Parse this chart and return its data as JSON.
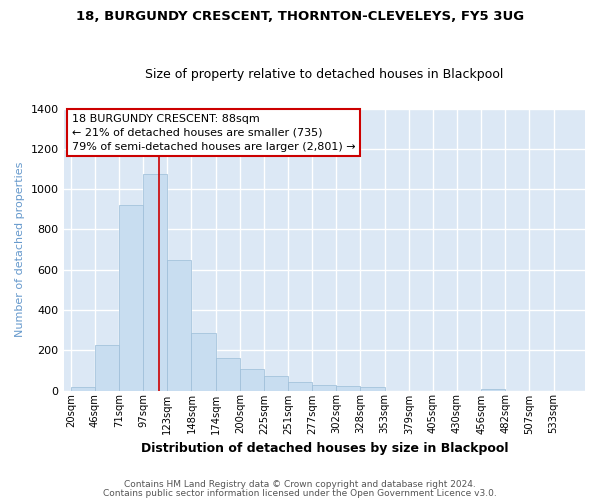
{
  "title1": "18, BURGUNDY CRESCENT, THORNTON-CLEVELEYS, FY5 3UG",
  "title2": "Size of property relative to detached houses in Blackpool",
  "xlabel": "Distribution of detached houses by size in Blackpool",
  "ylabel": "Number of detached properties",
  "categories": [
    "20sqm",
    "46sqm",
    "71sqm",
    "97sqm",
    "123sqm",
    "148sqm",
    "174sqm",
    "200sqm",
    "225sqm",
    "251sqm",
    "277sqm",
    "302sqm",
    "328sqm",
    "353sqm",
    "379sqm",
    "405sqm",
    "430sqm",
    "456sqm",
    "482sqm",
    "507sqm",
    "533sqm"
  ],
  "values": [
    15,
    225,
    920,
    1075,
    650,
    285,
    160,
    105,
    70,
    40,
    25,
    20,
    15,
    0,
    0,
    0,
    0,
    8,
    0,
    0,
    0
  ],
  "bar_color": "#c8ddf0",
  "bar_edge_color": "#9bbdd8",
  "vline_x_bin": 3,
  "annotation_text": "18 BURGUNDY CRESCENT: 88sqm\n← 21% of detached houses are smaller (735)\n79% of semi-detached houses are larger (2,801) →",
  "annotation_box_facecolor": "#ffffff",
  "annotation_box_edgecolor": "#cc0000",
  "footer1": "Contains HM Land Registry data © Crown copyright and database right 2024.",
  "footer2": "Contains public sector information licensed under the Open Government Licence v3.0.",
  "vline_color": "#cc0000",
  "ylim": [
    0,
    1400
  ],
  "figure_facecolor": "#ffffff",
  "axes_facecolor": "#dce8f5",
  "grid_color": "#ffffff",
  "ylabel_color": "#6699cc"
}
